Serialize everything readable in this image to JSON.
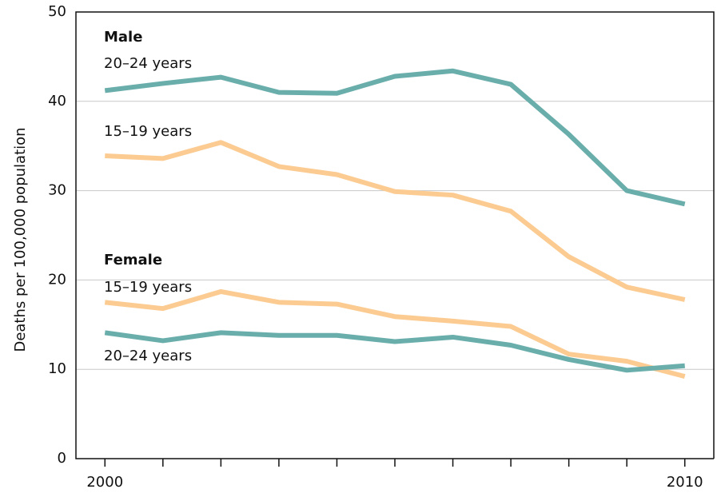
{
  "chart_data": {
    "type": "line",
    "ylabel": "Deaths per 100,000  population",
    "x": [
      2000,
      2001,
      2002,
      2003,
      2004,
      2005,
      2006,
      2007,
      2008,
      2009,
      2010
    ],
    "xlim": [
      1999.5,
      2010.5
    ],
    "xticks": [
      2000,
      2010
    ],
    "xminorticks": [
      2001,
      2002,
      2003,
      2004,
      2005,
      2006,
      2007,
      2008,
      2009
    ],
    "ylim": [
      0,
      50
    ],
    "yticks": [
      0,
      10,
      20,
      30,
      40,
      50
    ],
    "grid": true,
    "groups": [
      "Male",
      "Female"
    ],
    "series": [
      {
        "name": "20–24 years",
        "group": 0,
        "color": "#6aaeac",
        "values": [
          41.2,
          42.0,
          42.7,
          41.0,
          40.9,
          42.8,
          43.4,
          41.9,
          36.3,
          30.0,
          28.5
        ]
      },
      {
        "name": "15–19 years",
        "group": 0,
        "color": "#fbcb91",
        "values": [
          33.9,
          33.6,
          35.4,
          32.7,
          31.8,
          29.9,
          29.5,
          27.7,
          22.6,
          19.2,
          17.8
        ]
      },
      {
        "name": "15–19 years",
        "group": 1,
        "color": "#fbcb91",
        "values": [
          17.5,
          16.8,
          18.7,
          17.5,
          17.3,
          15.9,
          15.4,
          14.8,
          11.7,
          10.9,
          9.2
        ]
      },
      {
        "name": "20–24 years",
        "group": 1,
        "color": "#6aaeac",
        "values": [
          14.1,
          13.2,
          14.1,
          13.8,
          13.8,
          13.1,
          13.6,
          12.7,
          11.1,
          9.9,
          10.4
        ]
      }
    ]
  }
}
